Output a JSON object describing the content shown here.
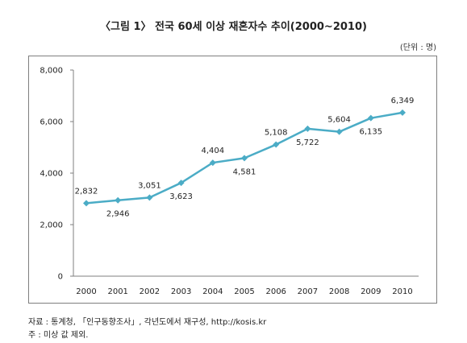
{
  "title": "〈그림 1〉 전국 60세 이상 재혼자수 추이(2000~2010)",
  "unit": "(단위 : 명)",
  "source": "자료 : 통계청, 「인구동향조사」, 각년도에서 재구성, http://kosis.kr",
  "note": "주 : 미상 값 제외.",
  "colors": {
    "line": "#4BACC6",
    "axis": "#7f7f7f"
  },
  "chart_data": {
    "type": "line",
    "title": "〈그림 1〉 전국 60세 이상 재혼자수 추이(2000~2010)",
    "xlabel": "",
    "ylabel": "",
    "unit": "(단위 : 명)",
    "categories": [
      "2000",
      "2001",
      "2002",
      "2003",
      "2004",
      "2005",
      "2006",
      "2007",
      "2008",
      "2009",
      "2010"
    ],
    "series": [
      {
        "values": [
          2832,
          2946,
          3051,
          3623,
          4404,
          4581,
          5108,
          5722,
          5604,
          6135,
          6349
        ]
      }
    ],
    "data_labels": [
      "2,832",
      "2,946",
      "3,051",
      "3,623",
      "4,404",
      "4,581",
      "5,108",
      "5,722",
      "5,604",
      "6,135",
      "6,349"
    ],
    "label_position": [
      "above",
      "below",
      "above",
      "below",
      "above",
      "below",
      "above",
      "below",
      "above",
      "below",
      "above"
    ],
    "ylim": [
      0,
      8000
    ],
    "yticks": [
      0,
      2000,
      4000,
      6000,
      8000
    ],
    "ytick_labels": [
      "0",
      "2,000",
      "4,000",
      "6,000",
      "8,000"
    ],
    "grid": false,
    "legend": "none",
    "marker": "diamond"
  }
}
